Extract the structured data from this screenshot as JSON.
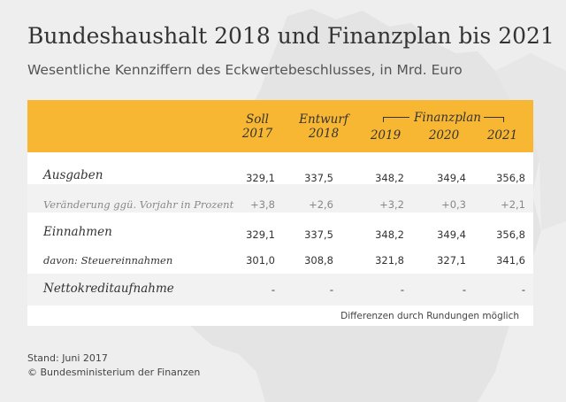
{
  "title": "Bundeshaushalt 2018 und Finanzplan bis 2021",
  "subtitle": "Wesentliche Kennziffern des Eckwertebeschlusses, in Mrd. Euro",
  "header": {
    "soll_label": "Soll",
    "soll_year": "2017",
    "entwurf_label": "Entwurf",
    "entwurf_year": "2018",
    "finanzplan_label": "Finanzplan",
    "fp_years": [
      "2019",
      "2020",
      "2021"
    ]
  },
  "rows": [
    {
      "label": "Ausgaben",
      "values": [
        "329,1",
        "337,5",
        "348,2",
        "349,4",
        "356,8"
      ]
    },
    {
      "label": "Veränderung ggü. Vorjahr in Prozent",
      "values": [
        "+3,8",
        "+2,6",
        "+3,2",
        "+0,3",
        "+2,1"
      ]
    },
    {
      "label": "Einnahmen",
      "values": [
        "329,1",
        "337,5",
        "348,2",
        "349,4",
        "356,8"
      ]
    },
    {
      "label": "davon: Steuereinnahmen",
      "values": [
        "301,0",
        "308,8",
        "321,8",
        "327,1",
        "341,6"
      ]
    },
    {
      "label": "Nettokreditaufnahme",
      "values": [
        "-",
        "-",
        "-",
        "-",
        "-"
      ]
    }
  ],
  "note": "Differenzen durch Rundungen möglich",
  "footer": {
    "stand": "Stand: Juni 2017",
    "copyright": "© Bundesministerium der Finanzen"
  },
  "colors": {
    "header_bg": "#f7b733",
    "background": "#eeeeee"
  }
}
